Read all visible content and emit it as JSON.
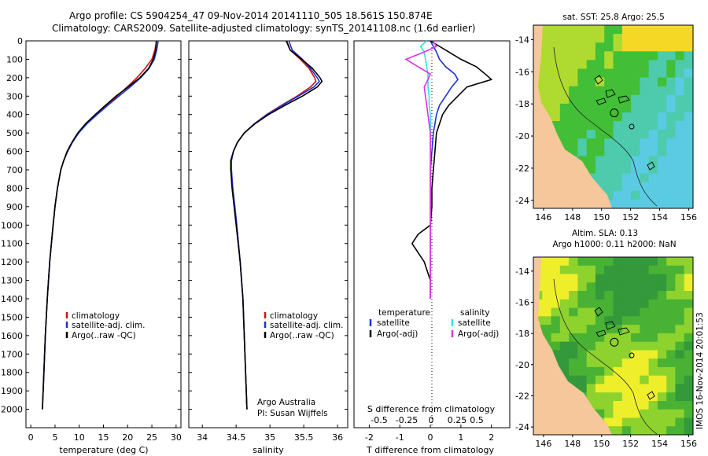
{
  "header": {
    "line1": "Argo profile: CS 5904254_47 09-Nov-2014 20141110_505 18.561S 150.874E",
    "line2": "Climatology: CARS2009. Satellite-adjusted climatology: synTS_20141108.nc (1.6d earlier)"
  },
  "colors": {
    "climatology": "#d01010",
    "satellite": "#1a33d8",
    "argo": "#000000",
    "sal_sat": "#33e0e0",
    "sal_argo": "#dd33dd",
    "land": "#f5c79a"
  },
  "chart_data": [
    {
      "type": "line",
      "name": "temperature-profile",
      "xlabel": "temperature (deg C)",
      "ylabel": "",
      "xlim": [
        -1,
        31
      ],
      "ylim": [
        0,
        2100
      ],
      "xticks": [
        0,
        5,
        10,
        15,
        20,
        25,
        30
      ],
      "yticks": [
        0,
        100,
        200,
        300,
        400,
        500,
        600,
        700,
        800,
        900,
        1000,
        1100,
        1200,
        1300,
        1400,
        1500,
        1600,
        1700,
        1800,
        1900,
        2000
      ],
      "depth": [
        0,
        50,
        100,
        150,
        200,
        250,
        300,
        350,
        400,
        450,
        500,
        550,
        600,
        650,
        700,
        800,
        900,
        1000,
        1200,
        1400,
        1600,
        1800,
        2000
      ],
      "series": [
        {
          "name": "climatology",
          "values": [
            26.0,
            25.6,
            25.0,
            23.6,
            21.9,
            19.9,
            17.8,
            15.7,
            13.6,
            11.5,
            9.8,
            8.6,
            7.6,
            6.8,
            6.2,
            5.5,
            5.0,
            4.6,
            3.9,
            3.4,
            3.0,
            2.7,
            2.4
          ]
        },
        {
          "name": "satellite-adj. clim.",
          "values": [
            26.3,
            26.0,
            25.5,
            24.4,
            22.7,
            20.5,
            18.2,
            15.9,
            13.7,
            11.6,
            9.9,
            8.6,
            7.6,
            6.8,
            6.2,
            5.5,
            5.0,
            4.6,
            3.9,
            3.4,
            3.0,
            2.7,
            2.4
          ]
        },
        {
          "name": "Argo(..raw -QC)",
          "values": [
            25.9,
            25.8,
            25.3,
            24.3,
            22.5,
            20.1,
            17.6,
            15.4,
            13.3,
            11.3,
            9.7,
            8.5,
            7.5,
            6.8,
            6.2,
            5.5,
            5.0,
            4.6,
            3.9,
            3.4,
            3.0,
            2.7,
            2.4
          ]
        }
      ],
      "legend": [
        "climatology",
        "satellite-adj. clim.",
        "Argo(..raw -QC)"
      ]
    },
    {
      "type": "line",
      "name": "salinity-profile",
      "xlabel": "salinity",
      "ylabel": "",
      "xlim": [
        33.8,
        36.15
      ],
      "ylim": [
        0,
        2100
      ],
      "xticks": [
        34,
        34.5,
        35,
        35.5,
        36
      ],
      "depth": [
        0,
        50,
        100,
        150,
        200,
        220,
        250,
        300,
        350,
        400,
        450,
        500,
        550,
        600,
        650,
        700,
        750,
        800,
        900,
        1000,
        1200,
        1400,
        1600,
        1800,
        2000
      ],
      "series": [
        {
          "name": "climatology",
          "values": [
            35.25,
            35.3,
            35.45,
            35.58,
            35.66,
            35.68,
            35.6,
            35.4,
            35.17,
            34.95,
            34.77,
            34.62,
            34.52,
            34.46,
            34.43,
            34.43,
            34.44,
            34.45,
            34.48,
            34.51,
            34.56,
            34.6,
            34.62,
            34.64,
            34.66
          ]
        },
        {
          "name": "satellite-adj. clim.",
          "values": [
            35.28,
            35.33,
            35.48,
            35.6,
            35.7,
            35.73,
            35.65,
            35.42,
            35.18,
            34.96,
            34.77,
            34.62,
            34.52,
            34.46,
            34.43,
            34.43,
            34.44,
            34.45,
            34.48,
            34.51,
            34.56,
            34.6,
            34.62,
            34.64,
            34.66
          ]
        },
        {
          "name": "Argo(..raw -QC)",
          "values": [
            35.24,
            35.3,
            35.47,
            35.63,
            35.74,
            35.77,
            35.7,
            35.48,
            35.22,
            34.98,
            34.78,
            34.62,
            34.52,
            34.46,
            34.42,
            34.42,
            34.43,
            34.44,
            34.47,
            34.5,
            34.56,
            34.6,
            34.62,
            34.64,
            34.66
          ]
        }
      ],
      "legend": [
        "climatology",
        "satellite-adj. clim.",
        "Argo(..raw -QC)"
      ],
      "annotation": [
        "Argo Australia",
        "PI: Susan Wijffels"
      ]
    },
    {
      "type": "line",
      "name": "difference-profile",
      "xlabel": "T difference from climatology",
      "x2label": "S difference from climatology",
      "xlim": [
        -2.5,
        2.6
      ],
      "ylim": [
        0,
        2100
      ],
      "xticks": [
        -2,
        -1,
        0,
        1,
        2
      ],
      "x2ticks": [
        "-0.5",
        "-0.25",
        "0",
        "0.25",
        "0.5"
      ],
      "depth": [
        0,
        30,
        60,
        100,
        140,
        180,
        210,
        250,
        300,
        350,
        400,
        450,
        500,
        600,
        700,
        800,
        900,
        1000,
        1050,
        1100,
        1200,
        1300,
        1400
      ],
      "series": [
        {
          "name": "temperature satellite",
          "values": [
            0.0,
            0.1,
            0.2,
            0.3,
            0.5,
            0.8,
            0.9,
            0.7,
            0.5,
            0.3,
            0.2,
            0.15,
            0.1,
            0.05,
            0.0,
            0.0,
            0.0,
            0.0,
            0.0,
            0.0,
            0.0,
            0.0,
            0.0
          ]
        },
        {
          "name": "temperature Argo(-adj)",
          "values": [
            0.0,
            0.3,
            0.6,
            1.0,
            1.5,
            1.8,
            2.0,
            1.2,
            0.9,
            0.6,
            0.4,
            0.3,
            0.2,
            0.15,
            0.1,
            0.05,
            0.05,
            0.0,
            -0.4,
            -0.6,
            -0.2,
            0.0,
            0.0
          ]
        },
        {
          "name": "salinity satellite",
          "values": [
            -0.03,
            -0.08,
            -0.05,
            -0.04,
            -0.03,
            -0.02,
            -0.02,
            -0.02,
            -0.01,
            -0.01,
            0.0,
            0.0,
            0.0,
            0.0,
            0.0,
            0.0,
            0.0,
            0.0,
            0.0,
            0.0,
            0.0,
            0.0,
            0.0
          ]
        },
        {
          "name": "salinity Argo(-adj)",
          "values": [
            0.02,
            0.05,
            -0.05,
            -0.2,
            -0.1,
            0.0,
            -0.02,
            -0.05,
            -0.04,
            -0.03,
            -0.02,
            -0.01,
            0.0,
            0.0,
            0.0,
            0.0,
            0.0,
            0.0,
            0.0,
            0.0,
            0.0,
            0.0,
            0.0
          ]
        }
      ],
      "legend_temperature_title": "temperature",
      "legend_salinity_title": "salinity",
      "legend_items": [
        "satellite",
        "Argo(-adj)",
        "satellite",
        "Argo(-adj)"
      ]
    }
  ],
  "maps": {
    "sst_title": "sat. SST: 25.8 Argo: 25.5",
    "sla_title1": "Altim. SLA: 0.13",
    "sla_title2": "Argo h1000: 0.11 h2000: NaN",
    "lon_ticks": [
      "146",
      "148",
      "150",
      "152",
      "154",
      "156"
    ],
    "lat_ticks": [
      "-14",
      "-16",
      "-18",
      "-20",
      "-22",
      "-24"
    ],
    "argo_lon": 150.874,
    "argo_lat": -18.561
  },
  "stamp": "IMOS 16-Nov-2014 20:01:53"
}
